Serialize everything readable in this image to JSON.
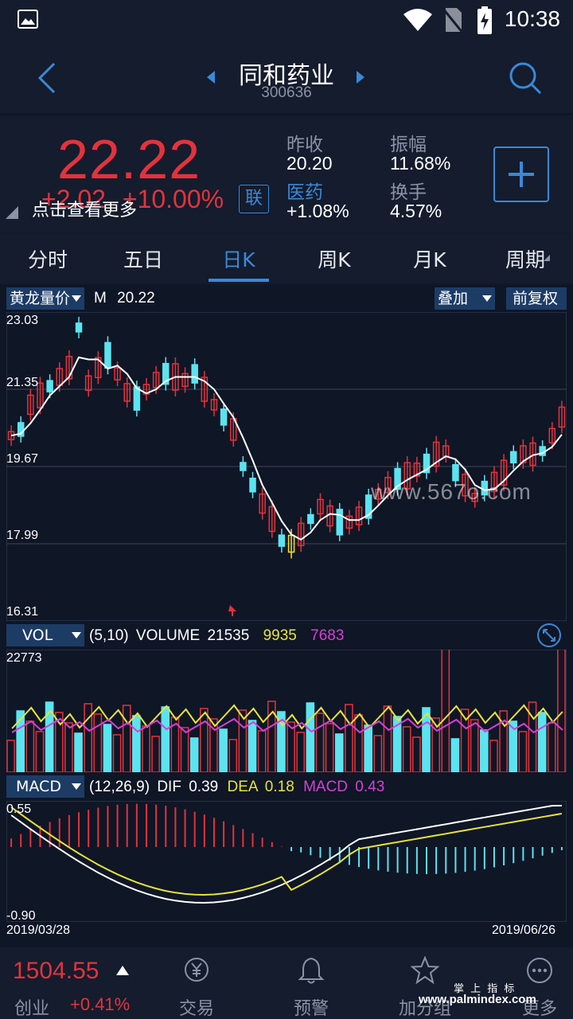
{
  "status_bar": {
    "time": "10:38"
  },
  "header": {
    "title": "同和药业",
    "code": "300636"
  },
  "quote": {
    "price": "22.22",
    "change": "+2.02",
    "change_pct": "+10.00%",
    "tip": "点击查看更多",
    "link_badge": "联",
    "prev_close_label": "昨收",
    "prev_close": "20.20",
    "amplitude_label": "振幅",
    "amplitude": "11.68%",
    "sector_label": "医药",
    "sector_change": "+1.08%",
    "turnover_label": "换手",
    "turnover": "4.57%"
  },
  "tabs": [
    "分时",
    "五日",
    "日K",
    "周K",
    "月K",
    "周期"
  ],
  "active_tab": "日K",
  "kline": {
    "indicator": "黄龙量价",
    "ma_label": "M",
    "ma_value": "20.22",
    "overlay_button": "叠加",
    "adjust_button": "前复权",
    "y_ticks": [
      "23.03",
      "21.35",
      "19.67",
      "17.99",
      "16.31"
    ],
    "watermark": "www.567o.com"
  },
  "volume": {
    "indicator": "VOL",
    "params": "(5,10)",
    "label": "VOLUME",
    "value": "21535",
    "ma5": "9935",
    "ma10": "7683",
    "max_tick": "22773"
  },
  "macd": {
    "indicator": "MACD",
    "params": "(12,26,9)",
    "dif_label": "DIF",
    "dif": "0.39",
    "dea_label": "DEA",
    "dea": "0.18",
    "macd_label": "MACD",
    "macd_value": "0.43",
    "y_top": "0.55",
    "y_bottom": "-0.90",
    "date_start": "2019/03/28",
    "date_end": "2019/06/26"
  },
  "bottom": {
    "index_value": "1504.55",
    "index_name": "创业",
    "index_change": "+0.41%",
    "nav": [
      "交易",
      "预警",
      "加分组",
      "更多"
    ],
    "watermark_cn": "掌 上 指 标",
    "watermark_url": "www.palmindex.com"
  },
  "colors": {
    "up": "#e5323c",
    "down": "#5ce3f0",
    "accent": "#3a89d8",
    "dea": "#e8e337",
    "macd": "#d63fd6"
  }
}
